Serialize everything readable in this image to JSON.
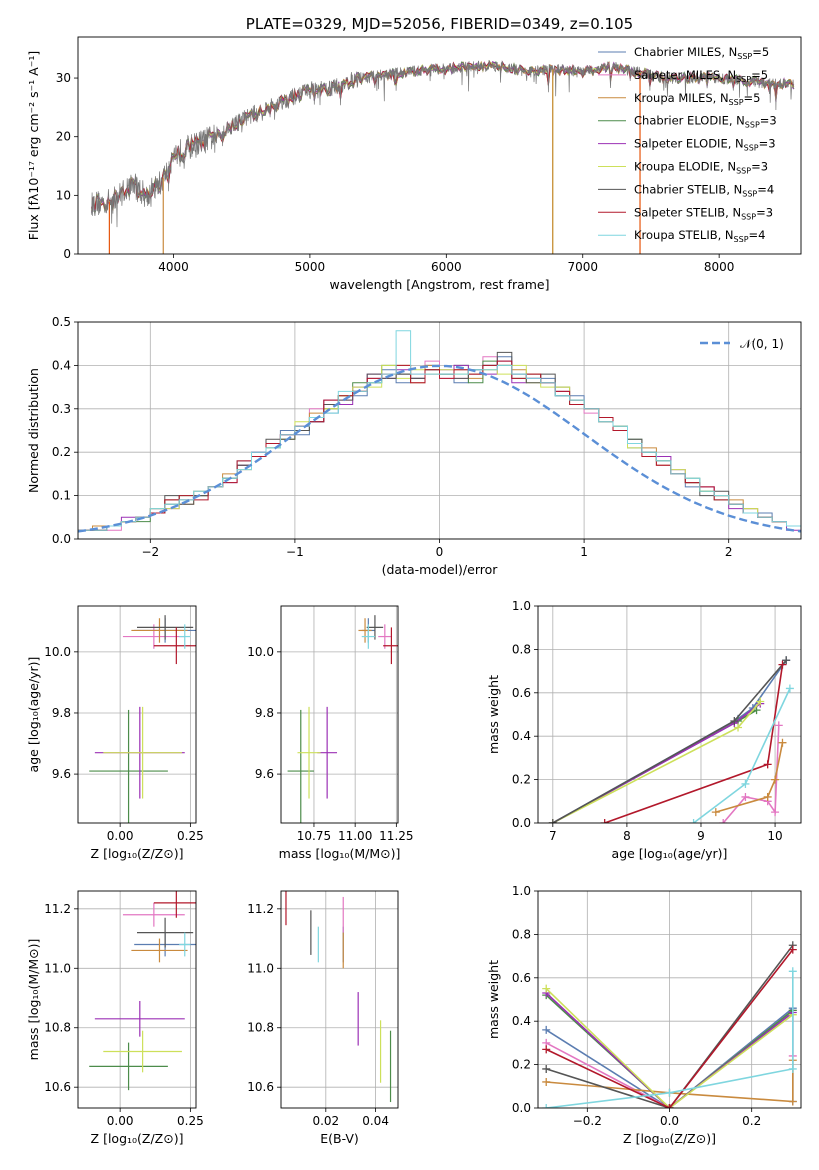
{
  "chart_data": [
    {
      "id": "spectrum",
      "type": "line",
      "title": "PLATE=0329, MJD=52056, FIBERID=0349, z=0.105",
      "xlabel": "wavelength [Angstrom, rest frame]",
      "ylabel": "Flux [fλ10⁻¹⁷ erg cm⁻² s⁻¹ A⁻¹]",
      "xlim": [
        3300,
        8600
      ],
      "ylim": [
        0,
        37
      ],
      "xticks": [
        4000,
        5000,
        6000,
        7000,
        8000
      ],
      "yticks": [
        0,
        10,
        20,
        30
      ],
      "grid": false,
      "legend_loc": "right",
      "data_range": [
        3400,
        8550
      ],
      "series": [
        {
          "name": "Chabrier MILES, Nₛₛₚ=5",
          "label_main": "Chabrier MILES, N",
          "label_sub": "SSP",
          "label_tail": "=5",
          "color": "#5b7db1"
        },
        {
          "name": "Salpeter MILES, Nₛₛₚ=5",
          "label_main": "Salpeter MILES, N",
          "label_sub": "SSP",
          "label_tail": "=5",
          "color": "#e377c2"
        },
        {
          "name": "Kroupa MILES, Nₛₛₚ=5",
          "label_main": "Kroupa MILES, N",
          "label_sub": "SSP",
          "label_tail": "=5",
          "color": "#c98a3e"
        },
        {
          "name": "Chabrier ELODIE, Nₛₛₚ=3",
          "label_main": "Chabrier ELODIE, N",
          "label_sub": "SSP",
          "label_tail": "=3",
          "color": "#4c8c4a"
        },
        {
          "name": "Salpeter ELODIE, Nₛₛₚ=3",
          "label_main": "Salpeter ELODIE, N",
          "label_sub": "SSP",
          "label_tail": "=3",
          "color": "#9b30b5"
        },
        {
          "name": "Kroupa ELODIE, Nₛₛₚ=3",
          "label_main": "Kroupa ELODIE, N",
          "label_sub": "SSP",
          "label_tail": "=3",
          "color": "#cde05a"
        },
        {
          "name": "Chabrier STELIB, Nₛₛₚ=4",
          "label_main": "Chabrier STELIB, N",
          "label_sub": "SSP",
          "label_tail": "=4",
          "color": "#555555"
        },
        {
          "name": "Salpeter STELIB, Nₛₛₚ=3",
          "label_main": "Salpeter STELIB, N",
          "label_sub": "SSP",
          "label_tail": "=3",
          "color": "#b2182b"
        },
        {
          "name": "Kroupa STELIB, Nₛₛₚ=4",
          "label_main": "Kroupa STELIB, N",
          "label_sub": "SSP",
          "label_tail": "=4",
          "color": "#7fd6df"
        }
      ],
      "continuum": [
        [
          3400,
          8.5
        ],
        [
          3550,
          9
        ],
        [
          3700,
          12
        ],
        [
          3800,
          10
        ],
        [
          3900,
          12
        ],
        [
          3950,
          14
        ],
        [
          4000,
          17
        ],
        [
          4100,
          18
        ],
        [
          4200,
          19
        ],
        [
          4300,
          20
        ],
        [
          4500,
          23
        ],
        [
          4700,
          25
        ],
        [
          4900,
          27
        ],
        [
          5000,
          28
        ],
        [
          5100,
          28
        ],
        [
          5200,
          28.5
        ],
        [
          5300,
          29.5
        ],
        [
          5400,
          30
        ],
        [
          5500,
          30.5
        ],
        [
          5700,
          31
        ],
        [
          5900,
          31.5
        ],
        [
          6000,
          31.5
        ],
        [
          6200,
          32
        ],
        [
          6400,
          32
        ],
        [
          6600,
          31
        ],
        [
          6800,
          31.5
        ],
        [
          7000,
          31
        ],
        [
          7200,
          32
        ],
        [
          7400,
          31
        ],
        [
          7600,
          30
        ],
        [
          7800,
          30
        ],
        [
          8000,
          30
        ],
        [
          8200,
          29.5
        ],
        [
          8400,
          29
        ],
        [
          8550,
          29
        ]
      ],
      "dips": [
        {
          "x": 3530,
          "to": 0,
          "color": "#e6550d"
        },
        {
          "x": 3925,
          "to": 0,
          "color": "#c98a3e"
        },
        {
          "x": 6780,
          "to": 0,
          "color": "#cde05a"
        },
        {
          "x": 6780,
          "to": 0,
          "color": "#c98a3e"
        },
        {
          "x": 7420,
          "to": 0,
          "color": "#e6550d"
        }
      ]
    },
    {
      "id": "residuals",
      "type": "bar",
      "xlabel": "(data-model)/error",
      "ylabel": "Normed distribution",
      "xlim": [
        -2.5,
        2.5
      ],
      "ylim": [
        0,
        0.5
      ],
      "xticks": [
        -2,
        -1,
        0,
        1,
        2
      ],
      "yticks": [
        0.0,
        0.1,
        0.2,
        0.3,
        0.4,
        0.5
      ],
      "grid": true,
      "bin_width": 0.1,
      "normal_curve": {
        "name": "N(0,1)",
        "label": "𝒩(0, 1)",
        "mean": 0,
        "sigma": 1,
        "color": "#5b8fd6"
      },
      "legend_loc": "upper right"
    },
    {
      "id": "age_vs_Z",
      "type": "scatter",
      "xlabel": "Z [log₁₀(Z/Z⊙)]",
      "ylabel": "age  [log₁₀(age/yr)]",
      "xlim": [
        -0.15,
        0.27
      ],
      "ylim": [
        9.44,
        10.15
      ],
      "xticks": [
        0.0,
        0.25
      ],
      "yticks": [
        9.6,
        9.8,
        10.0
      ],
      "grid": true
    },
    {
      "id": "age_vs_mass",
      "type": "scatter",
      "xlabel": "mass [log₁₀(M/M⊙)]",
      "xlim": [
        10.55,
        11.26
      ],
      "ylim": [
        9.44,
        10.15
      ],
      "xticks": [
        10.75,
        11.0,
        11.25
      ],
      "yticks": [
        9.6,
        9.8,
        10.0
      ],
      "grid": true
    },
    {
      "id": "mass_weight_age",
      "type": "line",
      "xlabel": "age  [log₁₀(age/yr)]",
      "ylabel": "mass weight",
      "xlim": [
        6.8,
        10.35
      ],
      "ylim": [
        0,
        1.0
      ],
      "xticks": [
        7,
        8,
        9,
        10
      ],
      "yticks": [
        0.0,
        0.2,
        0.4,
        0.6,
        0.8,
        1.0
      ],
      "grid": true
    },
    {
      "id": "mass_vs_Z",
      "type": "scatter",
      "xlabel": "Z [log₁₀(Z/Z⊙)]",
      "ylabel": "mass [log₁₀(M/M⊙)]",
      "xlim": [
        -0.15,
        0.27
      ],
      "ylim": [
        10.53,
        11.26
      ],
      "xticks": [
        0.0,
        0.25
      ],
      "yticks": [
        10.6,
        10.8,
        11.0,
        11.2
      ],
      "grid": true
    },
    {
      "id": "mass_vs_ebv",
      "type": "scatter",
      "xlabel": "E(B-V)",
      "xlim": [
        0.002,
        0.049
      ],
      "ylim": [
        10.53,
        11.26
      ],
      "xticks": [
        0.02,
        0.04
      ],
      "yticks": [
        10.6,
        10.8,
        11.0,
        11.2
      ],
      "grid": true
    },
    {
      "id": "mass_weight_Z",
      "type": "line",
      "xlabel": "Z [log₁₀(Z/Z⊙)]",
      "ylabel": "mass weight",
      "xlim": [
        -0.32,
        0.32
      ],
      "ylim": [
        0,
        1.0
      ],
      "xticks": [
        -0.2,
        0.0,
        0.2
      ],
      "yticks": [
        0.0,
        0.2,
        0.4,
        0.6,
        0.8,
        1.0
      ],
      "grid": true
    }
  ],
  "fits": [
    {
      "color": "#5b7db1",
      "Z": 0.16,
      "Zerr": 0.11,
      "age": 10.07,
      "ageerr": 0.04,
      "mass": 11.08,
      "masserr": 0.04,
      "ebv": 0.027,
      "ebverr": 0.01,
      "age_weights": [
        [
          7.0,
          0.0
        ],
        [
          9.5,
          0.48
        ],
        [
          9.7,
          0.53
        ],
        [
          10.15,
          0.75
        ]
      ],
      "Z_weights": [
        [
          -0.3,
          0.36
        ],
        [
          0.0,
          0.0
        ],
        [
          0.3,
          0.46
        ],
        [
          0.3,
          0.03
        ]
      ],
      "hist": [
        0.02,
        0.02,
        0.03,
        0.04,
        0.05,
        0.06,
        0.09,
        0.09,
        0.1,
        0.12,
        0.14,
        0.18,
        0.2,
        0.21,
        0.25,
        0.24,
        0.27,
        0.29,
        0.33,
        0.33,
        0.37,
        0.39,
        0.36,
        0.37,
        0.4,
        0.38,
        0.36,
        0.39,
        0.4,
        0.42,
        0.38,
        0.38,
        0.37,
        0.33,
        0.33,
        0.3,
        0.28,
        0.25,
        0.21,
        0.2,
        0.18,
        0.16,
        0.12,
        0.11,
        0.1,
        0.08,
        0.07,
        0.06,
        0.04,
        0.03
      ]
    },
    {
      "color": "#e377c2",
      "Z": 0.12,
      "Zerr": 0.11,
      "age": 10.05,
      "ageerr": 0.04,
      "mass": 11.18,
      "masserr": 0.04,
      "ebv": 0.027,
      "ebverr": 0.01,
      "age_weights": [
        [
          9.3,
          0.0
        ],
        [
          9.6,
          0.12
        ],
        [
          9.9,
          0.1
        ],
        [
          10.0,
          0.05
        ],
        [
          10.05,
          0.45
        ]
      ],
      "Z_weights": [
        [
          -0.3,
          0.3
        ],
        [
          0.0,
          0.0
        ],
        [
          0.3,
          0.45
        ],
        [
          0.3,
          0.24
        ]
      ],
      "hist": [
        0.02,
        0.02,
        0.02,
        0.04,
        0.05,
        0.07,
        0.08,
        0.09,
        0.1,
        0.12,
        0.14,
        0.16,
        0.2,
        0.22,
        0.23,
        0.26,
        0.3,
        0.31,
        0.32,
        0.34,
        0.37,
        0.38,
        0.38,
        0.38,
        0.41,
        0.37,
        0.37,
        0.38,
        0.42,
        0.4,
        0.38,
        0.37,
        0.36,
        0.35,
        0.32,
        0.29,
        0.28,
        0.25,
        0.22,
        0.2,
        0.17,
        0.16,
        0.13,
        0.12,
        0.1,
        0.08,
        0.07,
        0.05,
        0.04,
        0.03
      ]
    },
    {
      "color": "#c98a3e",
      "Z": 0.14,
      "Zerr": 0.1,
      "age": 10.07,
      "ageerr": 0.04,
      "mass": 11.06,
      "masserr": 0.04,
      "ebv": 0.027,
      "ebverr": 0.01,
      "age_weights": [
        [
          9.2,
          0.05
        ],
        [
          9.9,
          0.12
        ],
        [
          10.0,
          0.2
        ],
        [
          10.1,
          0.37
        ]
      ],
      "Z_weights": [
        [
          -0.3,
          0.12
        ],
        [
          0.0,
          0.07
        ],
        [
          0.3,
          0.03
        ],
        [
          0.3,
          0.22
        ]
      ],
      "hist": [
        0.02,
        0.03,
        0.03,
        0.04,
        0.05,
        0.06,
        0.09,
        0.08,
        0.1,
        0.12,
        0.15,
        0.17,
        0.19,
        0.22,
        0.24,
        0.26,
        0.29,
        0.3,
        0.33,
        0.34,
        0.36,
        0.37,
        0.4,
        0.36,
        0.4,
        0.38,
        0.39,
        0.37,
        0.39,
        0.4,
        0.39,
        0.38,
        0.36,
        0.34,
        0.32,
        0.3,
        0.27,
        0.26,
        0.22,
        0.21,
        0.17,
        0.15,
        0.13,
        0.11,
        0.1,
        0.09,
        0.07,
        0.05,
        0.04,
        0.03
      ]
    },
    {
      "color": "#4c8c4a",
      "Z": 0.03,
      "Zerr": 0.14,
      "age": 9.61,
      "ageerr": 0.2,
      "mass": 10.67,
      "masserr": 0.08,
      "ebv": 0.046,
      "ebverr": 0.03,
      "age_weights": [
        [
          7.0,
          0.0
        ],
        [
          9.5,
          0.47
        ],
        [
          9.75,
          0.52
        ]
      ],
      "Z_weights": [
        [
          -0.3,
          0.52
        ],
        [
          0.0,
          0.0
        ],
        [
          0.3,
          0.45
        ]
      ],
      "hist": [
        0.02,
        0.02,
        0.03,
        0.04,
        0.04,
        0.07,
        0.08,
        0.1,
        0.1,
        0.12,
        0.14,
        0.17,
        0.2,
        0.21,
        0.23,
        0.25,
        0.28,
        0.3,
        0.33,
        0.36,
        0.36,
        0.4,
        0.38,
        0.37,
        0.39,
        0.38,
        0.4,
        0.36,
        0.41,
        0.4,
        0.37,
        0.37,
        0.36,
        0.35,
        0.31,
        0.3,
        0.28,
        0.26,
        0.23,
        0.2,
        0.18,
        0.15,
        0.14,
        0.11,
        0.09,
        0.08,
        0.06,
        0.05,
        0.04,
        0.03
      ]
    },
    {
      "color": "#9b30b5",
      "Z": 0.07,
      "Zerr": 0.16,
      "age": 9.67,
      "ageerr": 0.15,
      "mass": 10.83,
      "masserr": 0.06,
      "ebv": 0.033,
      "ebverr": 0.01,
      "age_weights": [
        [
          7.0,
          0.0
        ],
        [
          9.45,
          0.46
        ],
        [
          9.8,
          0.55
        ]
      ],
      "Z_weights": [
        [
          -0.3,
          0.53
        ],
        [
          0.0,
          0.0
        ],
        [
          0.3,
          0.44
        ]
      ],
      "hist": [
        0.02,
        0.02,
        0.03,
        0.05,
        0.05,
        0.07,
        0.07,
        0.09,
        0.11,
        0.12,
        0.13,
        0.17,
        0.2,
        0.22,
        0.24,
        0.26,
        0.27,
        0.32,
        0.31,
        0.35,
        0.38,
        0.37,
        0.39,
        0.37,
        0.38,
        0.39,
        0.4,
        0.38,
        0.38,
        0.41,
        0.36,
        0.37,
        0.36,
        0.34,
        0.32,
        0.3,
        0.28,
        0.25,
        0.22,
        0.2,
        0.19,
        0.15,
        0.13,
        0.12,
        0.1,
        0.07,
        0.06,
        0.05,
        0.04,
        0.02
      ]
    },
    {
      "color": "#cde05a",
      "Z": 0.08,
      "Zerr": 0.14,
      "age": 9.67,
      "ageerr": 0.15,
      "mass": 10.72,
      "masserr": 0.07,
      "ebv": 0.042,
      "ebverr": 0.01,
      "age_weights": [
        [
          7.0,
          0.0
        ],
        [
          9.5,
          0.44
        ],
        [
          9.8,
          0.56
        ]
      ],
      "Z_weights": [
        [
          -0.3,
          0.55
        ],
        [
          0.0,
          0.0
        ],
        [
          0.3,
          0.43
        ]
      ],
      "hist": [
        0.02,
        0.02,
        0.03,
        0.04,
        0.05,
        0.07,
        0.07,
        0.09,
        0.11,
        0.12,
        0.14,
        0.16,
        0.19,
        0.21,
        0.23,
        0.27,
        0.28,
        0.3,
        0.33,
        0.35,
        0.35,
        0.4,
        0.37,
        0.39,
        0.38,
        0.39,
        0.38,
        0.38,
        0.39,
        0.38,
        0.4,
        0.36,
        0.35,
        0.35,
        0.32,
        0.3,
        0.28,
        0.25,
        0.21,
        0.2,
        0.18,
        0.16,
        0.13,
        0.11,
        0.1,
        0.08,
        0.07,
        0.05,
        0.04,
        0.03
      ]
    },
    {
      "color": "#555555",
      "Z": 0.16,
      "Zerr": 0.1,
      "age": 10.08,
      "ageerr": 0.04,
      "mass": 11.12,
      "masserr": 0.05,
      "ebv": 0.014,
      "ebverr": 0.01,
      "age_weights": [
        [
          7.0,
          0.0
        ],
        [
          9.45,
          0.47
        ],
        [
          10.15,
          0.75
        ]
      ],
      "Z_weights": [
        [
          -0.3,
          0.18
        ],
        [
          0.0,
          0.0
        ],
        [
          0.3,
          0.75
        ]
      ],
      "hist": [
        0.02,
        0.02,
        0.03,
        0.04,
        0.05,
        0.06,
        0.1,
        0.08,
        0.1,
        0.12,
        0.14,
        0.17,
        0.19,
        0.23,
        0.23,
        0.25,
        0.27,
        0.31,
        0.32,
        0.34,
        0.38,
        0.37,
        0.38,
        0.37,
        0.39,
        0.38,
        0.37,
        0.39,
        0.4,
        0.43,
        0.38,
        0.36,
        0.38,
        0.33,
        0.32,
        0.3,
        0.27,
        0.25,
        0.23,
        0.2,
        0.18,
        0.15,
        0.13,
        0.1,
        0.11,
        0.08,
        0.06,
        0.05,
        0.04,
        0.03
      ]
    },
    {
      "color": "#b2182b",
      "Z": 0.2,
      "Zerr": 0.08,
      "age": 10.02,
      "ageerr": 0.06,
      "mass": 11.22,
      "masserr": 0.05,
      "ebv": 0.004,
      "ebverr": 0.01,
      "age_weights": [
        [
          7.7,
          0.0
        ],
        [
          9.9,
          0.27
        ],
        [
          10.1,
          0.73
        ]
      ],
      "Z_weights": [
        [
          -0.3,
          0.27
        ],
        [
          0.0,
          0.0
        ],
        [
          0.3,
          0.73
        ]
      ],
      "hist": [
        0.02,
        0.02,
        0.03,
        0.04,
        0.05,
        0.06,
        0.09,
        0.1,
        0.09,
        0.12,
        0.13,
        0.18,
        0.19,
        0.22,
        0.24,
        0.26,
        0.27,
        0.32,
        0.33,
        0.34,
        0.37,
        0.38,
        0.4,
        0.36,
        0.39,
        0.37,
        0.39,
        0.38,
        0.4,
        0.41,
        0.37,
        0.38,
        0.36,
        0.34,
        0.31,
        0.3,
        0.28,
        0.25,
        0.22,
        0.19,
        0.17,
        0.15,
        0.13,
        0.12,
        0.09,
        0.08,
        0.06,
        0.05,
        0.04,
        0.03
      ]
    },
    {
      "color": "#7fd6df",
      "Z": 0.23,
      "Zerr": 0.02,
      "age": 10.05,
      "ageerr": 0.04,
      "mass": 11.08,
      "masserr": 0.04,
      "ebv": 0.017,
      "ebverr": 0.01,
      "age_weights": [
        [
          8.9,
          0.0
        ],
        [
          9.6,
          0.18
        ],
        [
          10.2,
          0.62
        ]
      ],
      "Z_weights": [
        [
          -0.3,
          0.0
        ],
        [
          0.0,
          0.07
        ],
        [
          0.3,
          0.18
        ],
        [
          0.3,
          0.63
        ]
      ],
      "hist": [
        0.02,
        0.02,
        0.03,
        0.04,
        0.05,
        0.07,
        0.08,
        0.09,
        0.11,
        0.12,
        0.14,
        0.16,
        0.2,
        0.21,
        0.24,
        0.26,
        0.28,
        0.29,
        0.34,
        0.34,
        0.36,
        0.38,
        0.48,
        0.38,
        0.38,
        0.38,
        0.38,
        0.39,
        0.39,
        0.4,
        0.38,
        0.37,
        0.36,
        0.33,
        0.32,
        0.3,
        0.27,
        0.26,
        0.22,
        0.2,
        0.18,
        0.15,
        0.14,
        0.11,
        0.1,
        0.08,
        0.06,
        0.05,
        0.04,
        0.03
      ]
    }
  ]
}
